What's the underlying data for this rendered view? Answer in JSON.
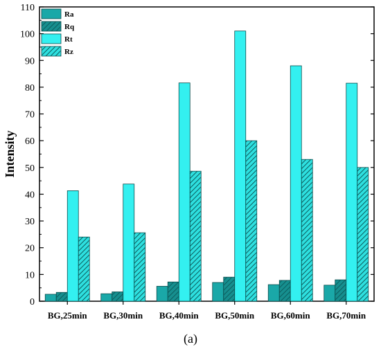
{
  "chart_data": {
    "type": "bar",
    "title": "",
    "xlabel": "",
    "ylabel": "Intensity",
    "ylim": [
      0,
      110
    ],
    "yticks": [
      0,
      10,
      20,
      30,
      40,
      50,
      60,
      70,
      80,
      90,
      100,
      110
    ],
    "categories": [
      "BG,25min",
      "BG,30min",
      "BG,40min",
      "BG,50min",
      "BG,60min",
      "BG,70min"
    ],
    "series": [
      {
        "name": "Ra",
        "values": [
          2.6,
          2.8,
          5.6,
          7.0,
          6.2,
          6.0
        ]
      },
      {
        "name": "Rq",
        "values": [
          3.3,
          3.5,
          7.2,
          9.0,
          7.8,
          8.0
        ]
      },
      {
        "name": "Rt",
        "values": [
          41.3,
          43.8,
          81.6,
          101.0,
          88.0,
          81.5
        ]
      },
      {
        "name": "Rz",
        "values": [
          24.0,
          25.6,
          48.6,
          60.0,
          53.0,
          50.0
        ]
      }
    ],
    "colors": {
      "Ra": "#1aa8a8",
      "Rq": "#168f8f",
      "Rt": "#33f0f0",
      "Rz": "#2ee0e0"
    },
    "legend_position": "top-left",
    "grid": false
  },
  "panel_label": "(a)"
}
